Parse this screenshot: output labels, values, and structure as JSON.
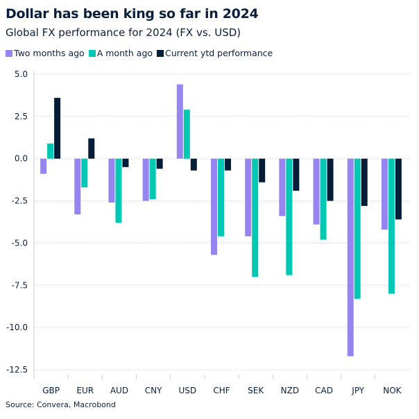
{
  "chart_data": {
    "type": "bar",
    "title": "Dollar has been king so far in 2024",
    "subtitle": "Global FX performance for 2024 (FX vs. USD)",
    "source": "Source: Convera, Macrobond",
    "categories": [
      "GBP",
      "EUR",
      "AUD",
      "CNY",
      "USD",
      "CHF",
      "SEK",
      "NZD",
      "CAD",
      "JPY",
      "NOK"
    ],
    "series": [
      {
        "name": "Two months ago",
        "color": "#9685f0",
        "values": [
          -0.9,
          -3.3,
          -2.6,
          -2.5,
          4.4,
          -5.7,
          -4.6,
          -3.4,
          -3.9,
          -11.7,
          -4.2
        ]
      },
      {
        "name": "A month ago",
        "color": "#00c8b4",
        "values": [
          0.9,
          -1.7,
          -3.8,
          -2.4,
          2.9,
          -4.6,
          -7.0,
          -6.9,
          -4.8,
          -8.3,
          -8.0
        ]
      },
      {
        "name": "Current ytd performance",
        "color": "#061d3a",
        "values": [
          3.6,
          1.2,
          -0.5,
          -0.6,
          -0.7,
          -0.7,
          -1.4,
          -1.9,
          -2.5,
          -2.8,
          -3.6
        ]
      }
    ],
    "yticks": [
      "5.0",
      "2.5",
      "0.0",
      "-2.5",
      "-5.0",
      "-7.5",
      "-10.0",
      "-12.5"
    ],
    "ylim": [
      -12.5,
      5.0
    ],
    "grid": true,
    "legend": "top-left"
  }
}
